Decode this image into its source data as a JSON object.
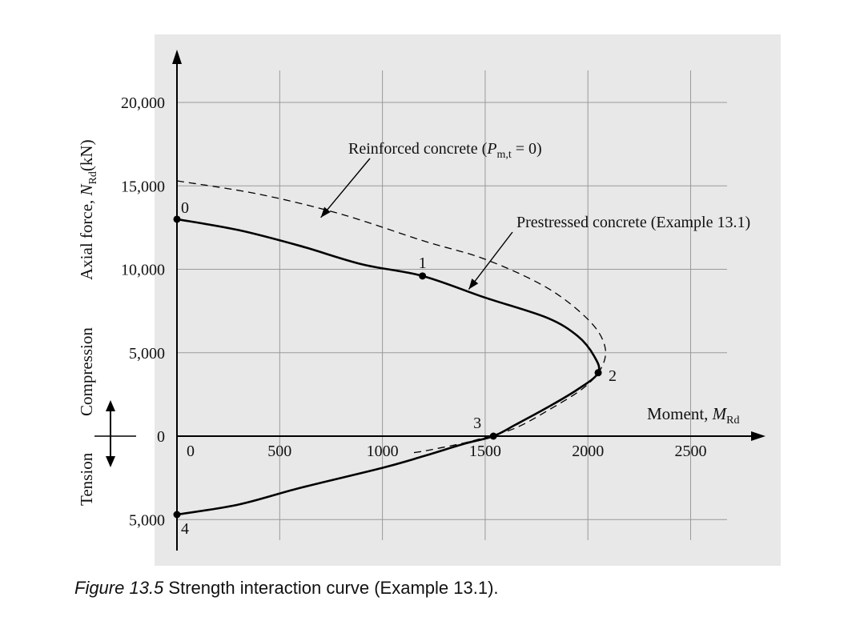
{
  "chart_data": {
    "type": "line",
    "background_color": "#e8e8e8",
    "xlim": [
      0,
      2700
    ],
    "ylim": [
      -6500,
      24000
    ],
    "x_ticks": [
      {
        "value": 0,
        "label": "0"
      },
      {
        "value": 500,
        "label": "500"
      },
      {
        "value": 1000,
        "label": "1000"
      },
      {
        "value": 1500,
        "label": "1500"
      },
      {
        "value": 2000,
        "label": "2000"
      },
      {
        "value": 2500,
        "label": "2500"
      }
    ],
    "y_ticks": [
      {
        "value": 20000,
        "label": "20,000"
      },
      {
        "value": 15000,
        "label": "15,000"
      },
      {
        "value": 10000,
        "label": "10,000"
      },
      {
        "value": 5000,
        "label": "5,000"
      },
      {
        "value": 0,
        "label": "0"
      },
      {
        "value": -5000,
        "label": "5,000"
      }
    ],
    "grid": true,
    "ylabel": {
      "main": "Axial force, ",
      "symbol": "N",
      "sub": "Rd",
      "unit": "(kN)"
    },
    "xlabel": {
      "main": "Moment, ",
      "symbol": "M",
      "sub": "Rd"
    },
    "compression_label": "Compression",
    "tension_label": "Tension",
    "series": [
      {
        "name": "Prestressed concrete (Example 13.1)",
        "style": "solid",
        "color": "#000000",
        "points": [
          [
            0,
            13000
          ],
          [
            300,
            12350
          ],
          [
            600,
            11400
          ],
          [
            900,
            10300
          ],
          [
            1195,
            9600
          ],
          [
            1500,
            8300
          ],
          [
            1800,
            7100
          ],
          [
            1950,
            6000
          ],
          [
            2030,
            4800
          ],
          [
            2050,
            3800
          ],
          [
            1950,
            2800
          ],
          [
            1800,
            1700
          ],
          [
            1650,
            700
          ],
          [
            1540,
            0
          ],
          [
            1400,
            -450
          ],
          [
            1200,
            -1200
          ],
          [
            1000,
            -1900
          ],
          [
            600,
            -3100
          ],
          [
            300,
            -4100
          ],
          [
            0,
            -4700
          ]
        ]
      },
      {
        "name": "Reinforced concrete (Pm,t = 0)",
        "style": "dashed",
        "color": "#000000",
        "points": [
          [
            0,
            15300
          ],
          [
            400,
            14500
          ],
          [
            800,
            13300
          ],
          [
            1200,
            11700
          ],
          [
            1500,
            10600
          ],
          [
            1800,
            8900
          ],
          [
            2000,
            7000
          ],
          [
            2080,
            5500
          ],
          [
            2070,
            4200
          ],
          [
            1980,
            2900
          ],
          [
            1800,
            1500
          ],
          [
            1650,
            500
          ],
          [
            1520,
            0
          ],
          [
            1400,
            -400
          ],
          [
            1200,
            -900
          ],
          [
            1140,
            -1000
          ]
        ]
      }
    ],
    "points": [
      {
        "label": "0",
        "x": 0,
        "y": 13000
      },
      {
        "label": "1",
        "x": 1195,
        "y": 9600
      },
      {
        "label": "2",
        "x": 2050,
        "y": 3800
      },
      {
        "label": "3",
        "x": 1540,
        "y": 0
      },
      {
        "label": "4",
        "x": 0,
        "y": -4700
      }
    ],
    "annotations": [
      {
        "id": "rc",
        "prefix": "Reinforced concrete (",
        "symbol": "P",
        "sub": "m,t",
        "suffix": " = 0)",
        "target": [
          700,
          13100
        ]
      },
      {
        "id": "pc",
        "text": "Prestressed concrete (Example 13.1)",
        "target": [
          1420,
          8800
        ]
      }
    ]
  },
  "caption": {
    "label": "Figure 13.5",
    "text": "Strength interaction curve (Example 13.1)."
  }
}
